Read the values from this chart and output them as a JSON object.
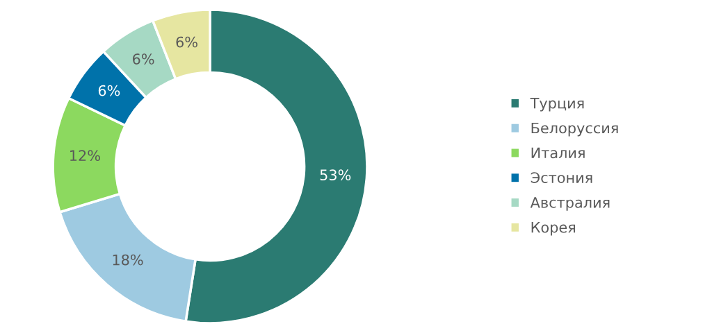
{
  "chart_data": {
    "type": "donut",
    "categories": [
      "Турция",
      "Белоруссия",
      "Италия",
      "Эстония",
      "Австралия",
      "Корея"
    ],
    "values": [
      53,
      18,
      12,
      6,
      6,
      6
    ],
    "colors": [
      "#2b7b72",
      "#9ecae1",
      "#8cd95f",
      "#0072aa",
      "#a6d9c4",
      "#e6e6a1"
    ],
    "value_labels": [
      "53%",
      "18%",
      "12%",
      "6%",
      "6%",
      "6%"
    ],
    "legend": "right"
  }
}
